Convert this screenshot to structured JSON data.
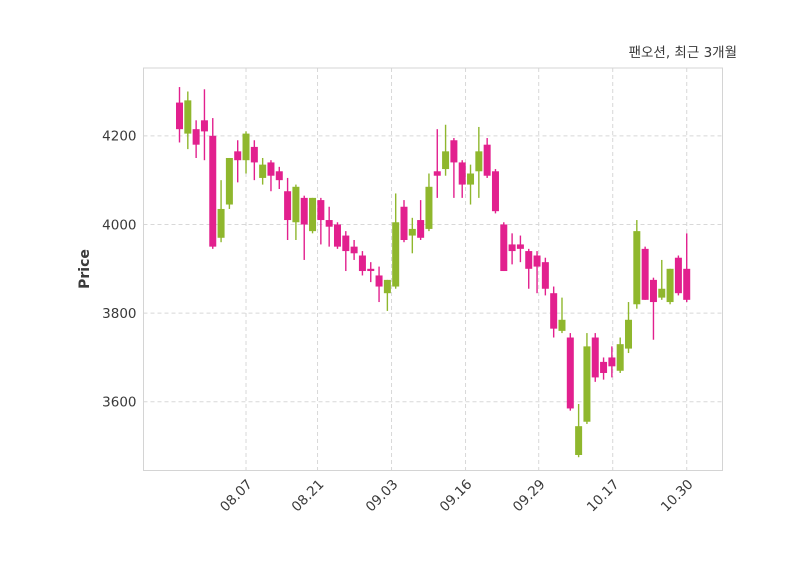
{
  "title": "팬오션, 최근 3개월",
  "ylabel": "Price",
  "colors": {
    "up": "#8fb72d",
    "down": "#e2208e",
    "grid": "#d8d8d8",
    "spine": "#d4d4d4",
    "text": "#3a3a3a",
    "background": "#ffffff"
  },
  "chart_data": {
    "type": "candlestick",
    "title": "팬오션, 최근 3개월",
    "ylabel": "Price",
    "grid": true,
    "ylim": [
      3445,
      4353
    ],
    "y_ticks": [
      3600,
      3800,
      4000,
      4200
    ],
    "x_tick_labels": [
      "08.07",
      "08.21",
      "09.03",
      "09.16",
      "09.29",
      "10.17",
      "10.30"
    ],
    "x_tick_indices": [
      8,
      16.6,
      25.5,
      34.4,
      43.2,
      52.1,
      61
    ],
    "up_color": "#8fb72d",
    "down_color": "#e2208e",
    "ohlc_order": [
      "open",
      "high",
      "low",
      "close"
    ],
    "candles": [
      [
        4275,
        4310,
        4185,
        4215
      ],
      [
        4205,
        4300,
        4170,
        4280
      ],
      [
        4215,
        4235,
        4150,
        4180
      ],
      [
        4235,
        4305,
        4145,
        4210
      ],
      [
        4200,
        4240,
        3945,
        3950
      ],
      [
        3970,
        4100,
        3960,
        4035
      ],
      [
        4045,
        4150,
        4035,
        4150
      ],
      [
        4165,
        4190,
        4095,
        4145
      ],
      [
        4145,
        4210,
        4115,
        4205
      ],
      [
        4175,
        4190,
        4100,
        4140
      ],
      [
        4105,
        4150,
        4090,
        4135
      ],
      [
        4140,
        4145,
        4075,
        4110
      ],
      [
        4120,
        4130,
        4080,
        4100
      ],
      [
        4075,
        4105,
        3965,
        4010
      ],
      [
        4005,
        4090,
        3965,
        4085
      ],
      [
        4060,
        4065,
        3920,
        4000
      ],
      [
        3985,
        4060,
        3980,
        4060
      ],
      [
        4055,
        4060,
        3955,
        4010
      ],
      [
        4010,
        4040,
        3950,
        3995
      ],
      [
        4000,
        4005,
        3945,
        3950
      ],
      [
        3975,
        3985,
        3895,
        3940
      ],
      [
        3950,
        3965,
        3920,
        3935
      ],
      [
        3930,
        3940,
        3885,
        3895
      ],
      [
        3900,
        3915,
        3870,
        3895
      ],
      [
        3885,
        3905,
        3825,
        3860
      ],
      [
        3845,
        3875,
        3805,
        3875
      ],
      [
        3860,
        4070,
        3855,
        4005
      ],
      [
        4040,
        4055,
        3960,
        3965
      ],
      [
        3975,
        4015,
        3935,
        3990
      ],
      [
        4010,
        4055,
        3965,
        3970
      ],
      [
        3990,
        4115,
        3985,
        4085
      ],
      [
        4120,
        4215,
        4060,
        4110
      ],
      [
        4125,
        4225,
        4110,
        4165
      ],
      [
        4190,
        4195,
        4060,
        4140
      ],
      [
        4140,
        4145,
        4060,
        4090
      ],
      [
        4090,
        4135,
        4045,
        4115
      ],
      [
        4120,
        4220,
        4060,
        4165
      ],
      [
        4180,
        4195,
        4105,
        4110
      ],
      [
        4120,
        4125,
        4025,
        4030
      ],
      [
        4000,
        4005,
        3895,
        3895
      ],
      [
        3955,
        3980,
        3910,
        3940
      ],
      [
        3955,
        3975,
        3915,
        3945
      ],
      [
        3940,
        3945,
        3855,
        3900
      ],
      [
        3930,
        3940,
        3845,
        3905
      ],
      [
        3915,
        3925,
        3840,
        3855
      ],
      [
        3845,
        3860,
        3745,
        3765
      ],
      [
        3760,
        3835,
        3755,
        3785
      ],
      [
        3745,
        3755,
        3580,
        3585
      ],
      [
        3480,
        3595,
        3475,
        3545
      ],
      [
        3555,
        3755,
        3550,
        3725
      ],
      [
        3745,
        3755,
        3645,
        3655
      ],
      [
        3690,
        3700,
        3650,
        3665
      ],
      [
        3700,
        3725,
        3655,
        3680
      ],
      [
        3670,
        3745,
        3665,
        3730
      ],
      [
        3720,
        3825,
        3710,
        3785
      ],
      [
        3820,
        4010,
        3810,
        3985
      ],
      [
        3945,
        3950,
        3830,
        3830
      ],
      [
        3875,
        3880,
        3740,
        3825
      ],
      [
        3835,
        3920,
        3830,
        3855
      ],
      [
        3825,
        3900,
        3820,
        3900
      ],
      [
        3925,
        3930,
        3840,
        3845
      ],
      [
        3900,
        3980,
        3825,
        3830
      ]
    ]
  }
}
